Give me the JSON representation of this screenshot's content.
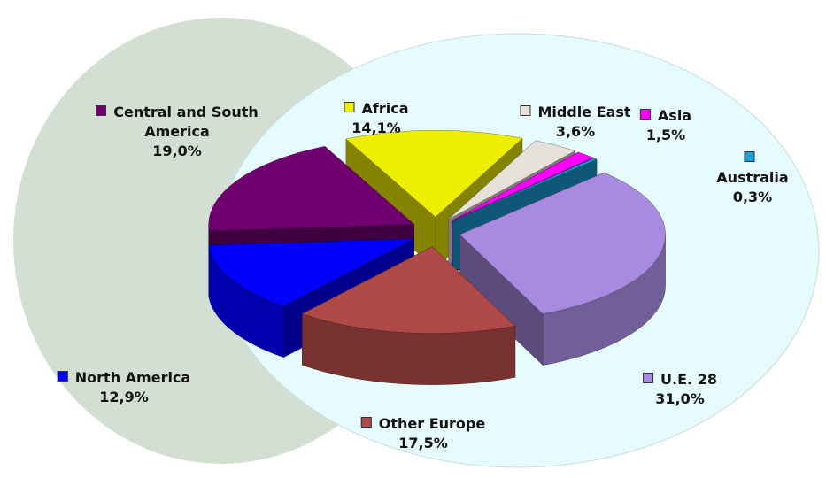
{
  "chart_data": {
    "type": "pie",
    "categories": [
      "Africa",
      "Middle East",
      "Asia",
      "Australia",
      "U.E. 28",
      "Other Europe",
      "North America",
      "Central and South America"
    ],
    "values": [
      14.1,
      3.6,
      1.5,
      0.3,
      31.0,
      17.5,
      12.9,
      19.0
    ],
    "value_labels": [
      "14,1%",
      "3,6%",
      "1,5%",
      "0,3%",
      "31,0%",
      "17,5%",
      "12,9%",
      "19,0%"
    ],
    "colors": [
      "#eeee00",
      "#e6e2da",
      "#ff00ff",
      "#1a9fd8",
      "#a88ae0",
      "#b04a48",
      "#0000ff",
      "#700070"
    ]
  }
}
